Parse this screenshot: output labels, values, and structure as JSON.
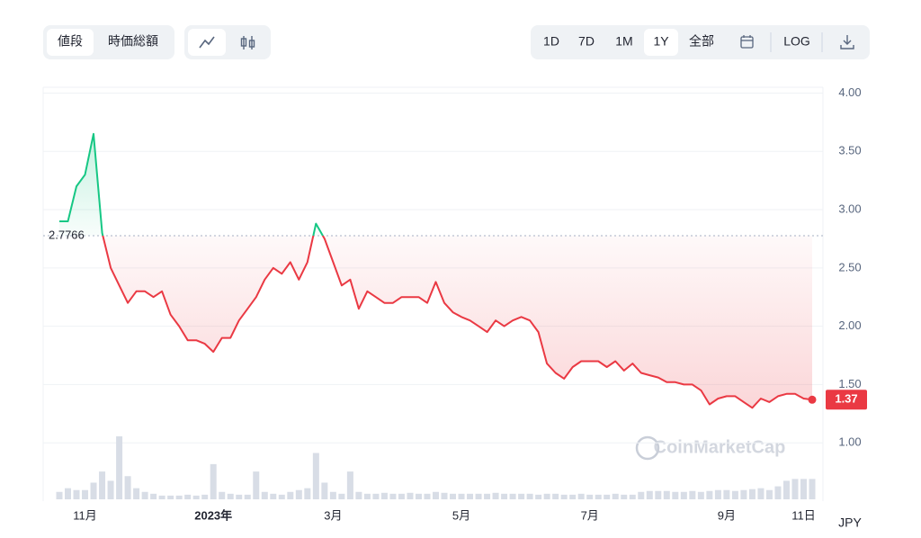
{
  "toolbar": {
    "metric_tabs": [
      "値段",
      "時価総額"
    ],
    "ranges": [
      "1D",
      "7D",
      "1M",
      "1Y",
      "全部"
    ],
    "log": "LOG"
  },
  "chart_data": {
    "type": "line",
    "categories": [
      null,
      null,
      null,
      "11月",
      null,
      null,
      null,
      null,
      null,
      null,
      null,
      null,
      null,
      null,
      null,
      null,
      null,
      null,
      "2023年",
      null,
      null,
      null,
      null,
      null,
      null,
      null,
      null,
      null,
      null,
      null,
      null,
      null,
      "3月",
      null,
      null,
      null,
      null,
      null,
      null,
      null,
      null,
      null,
      null,
      null,
      null,
      null,
      null,
      "5月",
      null,
      null,
      null,
      null,
      null,
      null,
      null,
      null,
      null,
      null,
      null,
      null,
      null,
      null,
      "7月",
      null,
      null,
      null,
      null,
      null,
      null,
      null,
      null,
      null,
      null,
      null,
      null,
      null,
      null,
      null,
      "9月",
      null,
      null,
      null,
      null,
      null,
      null,
      null,
      null,
      "11日",
      null
    ],
    "values": [
      2.9,
      2.9,
      3.2,
      3.3,
      3.65,
      2.8,
      2.5,
      2.35,
      2.2,
      2.3,
      2.3,
      2.25,
      2.3,
      2.1,
      2.0,
      1.88,
      1.88,
      1.85,
      1.78,
      1.9,
      1.9,
      2.05,
      2.15,
      2.25,
      2.4,
      2.5,
      2.45,
      2.55,
      2.4,
      2.55,
      2.88,
      2.75,
      2.55,
      2.35,
      2.4,
      2.15,
      2.3,
      2.25,
      2.2,
      2.2,
      2.25,
      2.25,
      2.25,
      2.2,
      2.38,
      2.2,
      2.12,
      2.08,
      2.05,
      2.0,
      1.95,
      2.05,
      2.0,
      2.05,
      2.08,
      2.05,
      1.95,
      1.68,
      1.6,
      1.55,
      1.65,
      1.7,
      1.7,
      1.7,
      1.65,
      1.7,
      1.62,
      1.68,
      1.6,
      1.58,
      1.56,
      1.52,
      1.52,
      1.5,
      1.5,
      1.45,
      1.33,
      1.38,
      1.4,
      1.4,
      1.35,
      1.3,
      1.38,
      1.35,
      1.4,
      1.42,
      1.42,
      1.38,
      1.37
    ],
    "volume": [
      8,
      12,
      10,
      10,
      18,
      30,
      20,
      68,
      25,
      12,
      8,
      6,
      4,
      4,
      4,
      5,
      4,
      5,
      38,
      8,
      6,
      5,
      5,
      30,
      8,
      6,
      5,
      8,
      10,
      12,
      50,
      18,
      8,
      6,
      30,
      8,
      6,
      6,
      7,
      6,
      6,
      7,
      6,
      6,
      8,
      7,
      6,
      6,
      6,
      6,
      6,
      7,
      6,
      6,
      6,
      6,
      5,
      6,
      6,
      5,
      5,
      6,
      5,
      5,
      5,
      6,
      5,
      5,
      8,
      9,
      9,
      9,
      8,
      8,
      9,
      8,
      9,
      10,
      10,
      9,
      10,
      11,
      12,
      10,
      14,
      20,
      22,
      22,
      22
    ],
    "baseline": 2.7766,
    "up_color": "#16c784",
    "down_color": "#ea3943",
    "volume_color": "#d8dde6",
    "ylim": [
      0.5,
      4.05
    ],
    "yticks": [
      {
        "value": 1,
        "label": "1.00"
      },
      {
        "value": 1.5,
        "label": "1.50"
      },
      {
        "value": 2,
        "label": "2.00"
      },
      {
        "value": 2.5,
        "label": "2.50"
      },
      {
        "value": 3,
        "label": "3.00"
      },
      {
        "value": 3.5,
        "label": "3.50"
      },
      {
        "value": 4,
        "label": "4.00"
      }
    ],
    "grid": true,
    "currency": "JPY",
    "watermark": "CoinMarketCap"
  }
}
